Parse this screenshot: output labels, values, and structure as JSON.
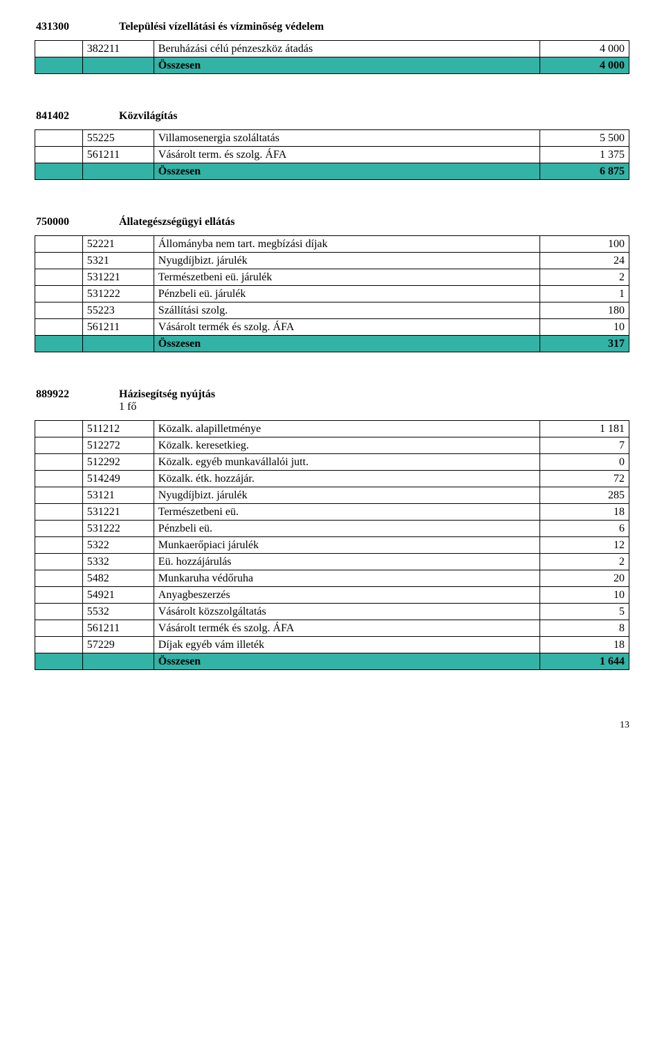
{
  "colors": {
    "summary_bg": "#33b2a6",
    "border": "#000000",
    "text": "#000000",
    "page_bg": "#ffffff"
  },
  "page_number": "13",
  "sections": [
    {
      "code": "431300",
      "title": "Települési vízellátási és vízminőség védelem",
      "subtitle": "",
      "rows": [
        {
          "code": "382211",
          "label": "Beruházási célú pénzeszköz átadás",
          "value": "4 000",
          "summary": false
        },
        {
          "code": "",
          "label": "Összesen",
          "value": "4 000",
          "summary": true
        }
      ]
    },
    {
      "code": "841402",
      "title": "Közvilágítás",
      "subtitle": "",
      "rows": [
        {
          "code": "55225",
          "label": "Villamosenergia szoláltatás",
          "value": "5 500",
          "summary": false
        },
        {
          "code": "561211",
          "label": "Vásárolt term. és szolg. ÁFA",
          "value": "1 375",
          "summary": false
        },
        {
          "code": "",
          "label": "Összesen",
          "value": "6 875",
          "summary": true
        }
      ]
    },
    {
      "code": "750000",
      "title": "Állategészségügyi ellátás",
      "subtitle": "",
      "rows": [
        {
          "code": "52221",
          "label": "Állományba nem tart. megbízási díjak",
          "value": "100",
          "summary": false
        },
        {
          "code": "5321",
          "label": "Nyugdíjbizt. járulék",
          "value": "24",
          "summary": false
        },
        {
          "code": "531221",
          "label": "Természetbeni eü. járulék",
          "value": "2",
          "summary": false
        },
        {
          "code": "531222",
          "label": "Pénzbeli eü. járulék",
          "value": "1",
          "summary": false
        },
        {
          "code": "55223",
          "label": "Szállítási szolg.",
          "value": "180",
          "summary": false
        },
        {
          "code": "561211",
          "label": "Vásárolt termék és szolg. ÁFA",
          "value": "10",
          "summary": false
        },
        {
          "code": "",
          "label": "Összesen",
          "value": "317",
          "summary": true
        }
      ]
    },
    {
      "code": "889922",
      "title": "Házisegítség nyújtás",
      "subtitle": "1 fő",
      "rows": [
        {
          "code": "511212",
          "label": "Közalk. alapilletménye",
          "value": "1 181",
          "summary": false
        },
        {
          "code": "512272",
          "label": "Közalk. keresetkieg.",
          "value": "7",
          "summary": false
        },
        {
          "code": "512292",
          "label": "Közalk. egyéb munkavállalói jutt.",
          "value": "0",
          "summary": false
        },
        {
          "code": "514249",
          "label": "Közalk. étk. hozzájár.",
          "value": "72",
          "summary": false
        },
        {
          "code": "53121",
          "label": "Nyugdíjbizt. járulék",
          "value": "285",
          "summary": false
        },
        {
          "code": "531221",
          "label": "Természetbeni eü.",
          "value": "18",
          "summary": false
        },
        {
          "code": "531222",
          "label": "Pénzbeli eü.",
          "value": "6",
          "summary": false
        },
        {
          "code": "5322",
          "label": "Munkaerőpiaci járulék",
          "value": "12",
          "summary": false
        },
        {
          "code": "5332",
          "label": "Eü. hozzájárulás",
          "value": "2",
          "summary": false
        },
        {
          "code": "5482",
          "label": "Munkaruha védőruha",
          "value": "20",
          "summary": false
        },
        {
          "code": "54921",
          "label": "Anyagbeszerzés",
          "value": "10",
          "summary": false
        },
        {
          "code": "5532",
          "label": "Vásárolt közszolgáltatás",
          "value": "5",
          "summary": false
        },
        {
          "code": "561211",
          "label": "Vásárolt termék és szolg. ÁFA",
          "value": "8",
          "summary": false
        },
        {
          "code": "57229",
          "label": "Díjak egyéb vám illeték",
          "value": "18",
          "summary": false
        },
        {
          "code": "",
          "label": "Összesen",
          "value": "1 644",
          "summary": true
        }
      ]
    }
  ]
}
